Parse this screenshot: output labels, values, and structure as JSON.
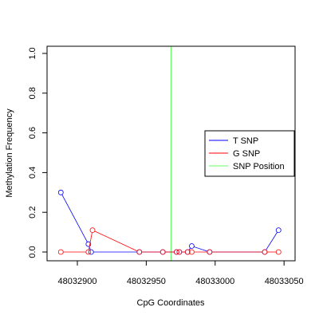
{
  "chart_data": {
    "type": "line",
    "xlabel": "CpG Coordinates",
    "ylabel": "Methylation Frequency",
    "xlim": [
      48032878,
      48033058
    ],
    "ylim": [
      0,
      1.04
    ],
    "x_ticks": [
      48032900,
      48032950,
      48033000,
      48033050
    ],
    "y_ticks": [
      0.0,
      0.2,
      0.4,
      0.6,
      0.8,
      1.0
    ],
    "x_tick_labels": [
      "48032900",
      "48032950",
      "48033000",
      "48033050"
    ],
    "y_tick_labels": [
      "0.0",
      "0.2",
      "0.4",
      "0.6",
      "0.8",
      "1.0"
    ],
    "legend_position": "right",
    "series": [
      {
        "name": "T SNP",
        "color": "#0000ff",
        "x": [
          48032888,
          48032908,
          48032910,
          48032945,
          48032962,
          48032972,
          48032974,
          48032980,
          48032983,
          48032996,
          48033036,
          48033046
        ],
        "y": [
          0.3,
          0.04,
          0.0,
          0.0,
          0.0,
          0.0,
          0.0,
          0.0,
          0.03,
          0.0,
          0.0,
          0.11
        ]
      },
      {
        "name": "G SNP",
        "color": "#ff0000",
        "x": [
          48032888,
          48032908,
          48032911,
          48032945,
          48032962,
          48032972,
          48032974,
          48032980,
          48032983,
          48032996,
          48033036,
          48033046
        ],
        "y": [
          0.0,
          0.0,
          0.11,
          0.0,
          0.0,
          0.0,
          0.0,
          0.0,
          0.0,
          0.0,
          0.0,
          0.0
        ]
      }
    ],
    "snp_position": {
      "name": "SNP Position",
      "color": "#66ff66",
      "x": 48032968
    }
  }
}
